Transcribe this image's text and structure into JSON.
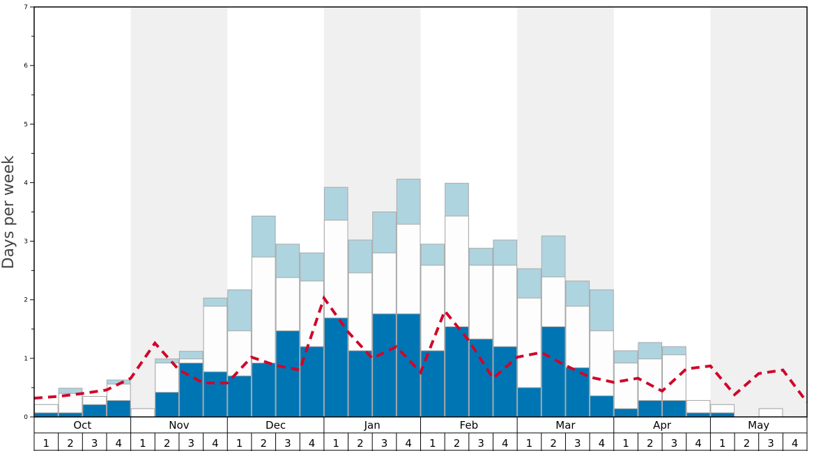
{
  "chart_data": {
    "type": "bar",
    "title": "",
    "xlabel": "",
    "ylabel": "Days per week",
    "ylim": [
      0,
      7
    ],
    "yticks": [
      "0",
      "1",
      "2",
      "3",
      "4",
      "5",
      "6",
      "7"
    ],
    "months": [
      "Oct",
      "Nov",
      "Dec",
      "Jan",
      "Feb",
      "Mar",
      "Apr",
      "May"
    ],
    "weeks": [
      "1",
      "2",
      "3",
      "4"
    ],
    "stacked_note": "values are cumulative tops of each stacked layer",
    "series": [
      {
        "name": "dark-blue",
        "color": "#0075b4",
        "values": [
          0.07,
          0.07,
          0.21,
          0.28,
          0,
          0.42,
          0.92,
          0.77,
          0.7,
          0.92,
          1.47,
          1.2,
          1.69,
          1.13,
          1.76,
          1.76,
          1.13,
          1.54,
          1.33,
          1.2,
          0.5,
          1.54,
          0.84,
          0.36,
          0.14,
          0.28,
          0.28,
          0.07,
          0.07,
          0,
          0,
          0
        ]
      },
      {
        "name": "white",
        "color": "#fdfdfd",
        "values": [
          0.21,
          0.4,
          0.35,
          0.56,
          0.14,
          0.92,
          0.99,
          1.89,
          1.47,
          2.73,
          2.38,
          2.32,
          3.36,
          2.46,
          2.8,
          3.29,
          2.59,
          3.43,
          2.59,
          2.59,
          2.03,
          2.39,
          1.89,
          1.47,
          0.92,
          0.99,
          1.06,
          0.28,
          0.21,
          0,
          0.14,
          0
        ]
      },
      {
        "name": "light-blue",
        "color": "#aed4e0",
        "values": [
          0.21,
          0.49,
          0.35,
          0.63,
          0.14,
          0.99,
          1.12,
          2.03,
          2.17,
          3.43,
          2.95,
          2.8,
          3.92,
          3.02,
          3.5,
          4.06,
          2.95,
          3.99,
          2.88,
          3.02,
          2.53,
          3.09,
          2.32,
          2.17,
          1.13,
          1.27,
          1.2,
          0.28,
          0.21,
          0,
          0.14,
          0
        ]
      }
    ],
    "line": {
      "name": "average",
      "color": "#d0062a",
      "style": "dashed",
      "values": [
        0.32,
        0.35,
        0.4,
        0.46,
        0.66,
        1.26,
        0.8,
        0.58,
        0.58,
        1.02,
        0.88,
        0.8,
        2.03,
        1.45,
        1.0,
        1.2,
        0.76,
        1.81,
        1.3,
        0.66,
        1.02,
        1.1,
        0.88,
        0.68,
        0.59,
        0.66,
        0.44,
        0.82,
        0.87,
        0.38,
        0.74,
        0.8,
        0.25
      ]
    },
    "shaded_months": [
      "Nov",
      "Jan",
      "Mar",
      "May"
    ],
    "grid": false,
    "legend": "none"
  }
}
